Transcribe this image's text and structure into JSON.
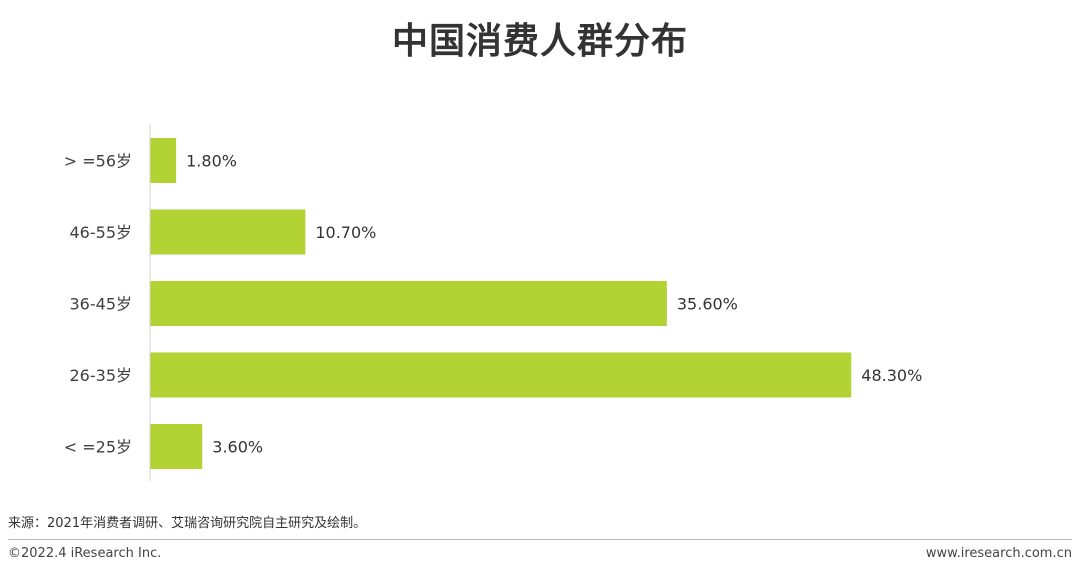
{
  "chart_data": {
    "type": "bar",
    "orientation": "horizontal",
    "title": "中国消费人群分布",
    "categories": [
      "> =56岁",
      "46-55岁",
      "36-45岁",
      "26-35岁",
      "< =25岁"
    ],
    "values": [
      1.8,
      10.7,
      35.6,
      48.3,
      3.6
    ],
    "value_labels": [
      "1.80%",
      "10.70%",
      "35.60%",
      "48.30%",
      "3.60%"
    ],
    "unit": "%",
    "xlim": [
      0,
      52
    ],
    "grid": false,
    "legend": "none",
    "bar_color": "#b3d334"
  },
  "footer": {
    "source": "来源：2021年消费者调研、艾瑞咨询研究院自主研究及绘制。",
    "copyright": "©2022.4 iResearch Inc.",
    "website": "www.iresearch.com.cn"
  }
}
